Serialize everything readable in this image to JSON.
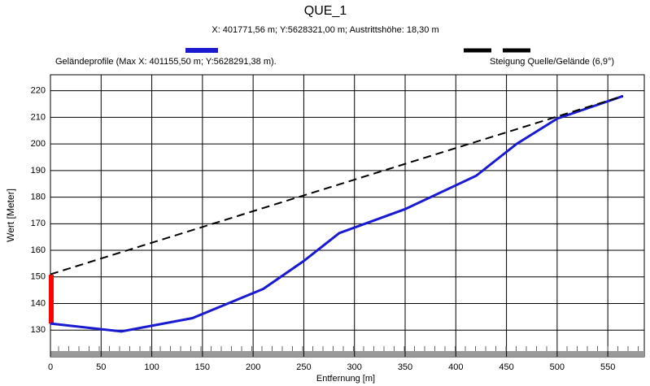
{
  "chart_data": {
    "type": "line",
    "title": "QUE_1",
    "subtitle": "X: 401771,56 m; Y:5628321,00 m; Austrittshöhe: 18,30 m",
    "x_label": "Entfernung [m]",
    "y_label": "Wert [Meter]",
    "xlim": [
      0,
      586
    ],
    "ylim": [
      120,
      226
    ],
    "xticks": [
      0,
      50,
      100,
      150,
      200,
      250,
      300,
      350,
      400,
      450,
      500,
      550
    ],
    "yticks": [
      130,
      140,
      150,
      160,
      170,
      180,
      190,
      200,
      210,
      220
    ],
    "grid": true,
    "series": [
      {
        "name": "Geländeprofile (Max X: 401155,50 m; Y:5628291,38 m).",
        "color": "#1a1ad0",
        "dash": false,
        "x": [
          0,
          70,
          140,
          210,
          250,
          285,
          350,
          420,
          460,
          500,
          565
        ],
        "values": [
          132.5,
          129.5,
          134.5,
          145.5,
          156,
          166.5,
          175.5,
          188,
          200,
          209.5,
          218
        ]
      },
      {
        "name": "Steigung Quelle/Gelände (6,9°)",
        "color": "#000000",
        "dash": true,
        "x": [
          0,
          565
        ],
        "values": [
          151,
          218
        ]
      }
    ],
    "source_bar": {
      "color": "#ff0000",
      "x": 0,
      "values": [
        132.5,
        150.8
      ]
    }
  }
}
